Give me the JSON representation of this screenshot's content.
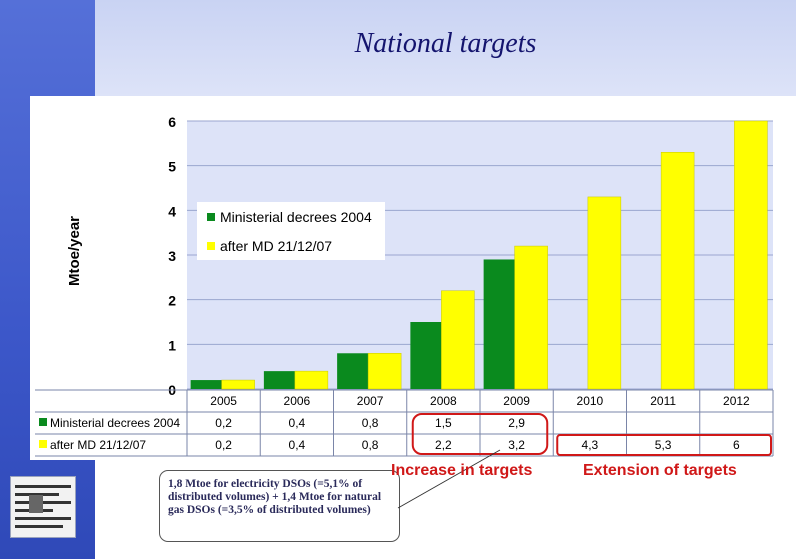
{
  "page": {
    "title": "National targets"
  },
  "chart_data": {
    "type": "bar",
    "categories": [
      "2005",
      "2006",
      "2007",
      "2008",
      "2009",
      "2010",
      "2011",
      "2012"
    ],
    "series": [
      {
        "name": "Ministerial decrees 2004",
        "color": "#0a8a1e",
        "values": [
          0.2,
          0.4,
          0.8,
          1.5,
          2.9,
          null,
          null,
          null
        ]
      },
      {
        "name": "after MD 21/12/07",
        "color": "#ffff00",
        "values": [
          0.2,
          0.4,
          0.8,
          2.2,
          3.2,
          4.3,
          5.3,
          6
        ]
      }
    ],
    "yticks": [
      0,
      1,
      2,
      3,
      4,
      5,
      6
    ],
    "ylim": [
      0,
      6
    ],
    "ylabel": "Mtoe/year",
    "legend_position": "top-left",
    "table_rows": [
      {
        "label": "Ministerial decrees 2004",
        "values": [
          "0,2",
          "0,4",
          "0,8",
          "1,5",
          "2,9",
          "",
          "",
          ""
        ]
      },
      {
        "label": "after MD 21/12/07",
        "values": [
          "0,2",
          "0,4",
          "0,8",
          "2,2",
          "3,2",
          "4,3",
          "5,3",
          "6"
        ]
      }
    ]
  },
  "annotations": {
    "increase": "Increase in targets",
    "extension": "Extension of targets",
    "note": "1,8 Mtoe for electricity DSOs (=5,1% of distributed volumes) + 1,4 Mtoe for natural gas DSOs (=3,5% of distributed volumes)"
  },
  "colors": {
    "plot_bg": "#dde3f8",
    "accent_red": "#d01818",
    "title": "#14146e"
  }
}
